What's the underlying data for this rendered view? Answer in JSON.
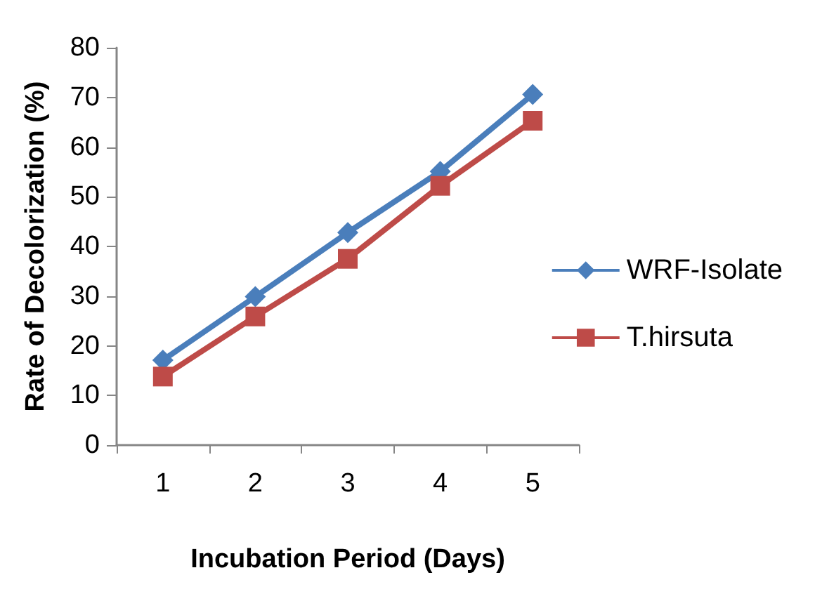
{
  "chart_data": {
    "type": "line",
    "xlabel": "Incubation Period (Days)",
    "ylabel": "Rate of Decolorization (%)",
    "categories": [
      "1",
      "2",
      "3",
      "4",
      "5"
    ],
    "series": [
      {
        "name": "WRF-Isolate",
        "color": "#4a7ebb",
        "marker": "diamond",
        "values": [
          17.1,
          29.9,
          42.8,
          55.1,
          70.6
        ]
      },
      {
        "name": "T.hirsuta",
        "color": "#be4b48",
        "marker": "square",
        "values": [
          13.8,
          25.9,
          37.5,
          52.2,
          65.3
        ]
      }
    ],
    "ylim": [
      0,
      80
    ],
    "yticks": [
      0,
      10,
      20,
      30,
      40,
      50,
      60,
      70,
      80
    ],
    "grid": false,
    "legend": "right"
  }
}
